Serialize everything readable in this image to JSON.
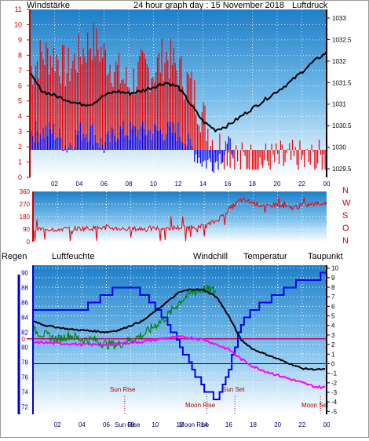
{
  "header": {
    "left_label": "Windstärke",
    "title": "24 hour graph day : 15 November 2018",
    "right_label": "Luftdruck"
  },
  "colors": {
    "red": "#ee0000",
    "blue": "#0000ee",
    "black": "#000000",
    "green": "#008000",
    "magenta": "#ff00ff",
    "darkred": "#aa0000",
    "sky_top": "#1e7fc8",
    "sky_bottom": "#ffffff"
  },
  "chart_data": [
    {
      "type": "line",
      "name": "wind_pressure",
      "x_ticks": [
        "02",
        "04",
        "06",
        "08",
        "10",
        "12",
        "14",
        "16",
        "18",
        "20",
        "22",
        "00"
      ],
      "left_axis": {
        "label": "Windstärke",
        "ticks": [
          "0",
          "1",
          "2",
          "3",
          "4",
          "5",
          "6",
          "7",
          "8",
          "9",
          "10",
          "11"
        ],
        "ylim": [
          0,
          11
        ]
      },
      "right_axis": {
        "label": "Luftdruck",
        "ticks": [
          "1029.5",
          "1030",
          "1030.5",
          "1031",
          "1031.5",
          "1032",
          "1032.5",
          "1033"
        ],
        "ylim": [
          1029.3,
          1033.2
        ]
      },
      "series": [
        {
          "name": "Windstärke",
          "color": "#ee0000",
          "x": [
            0,
            1,
            2,
            3,
            4,
            5,
            6,
            7,
            8,
            9,
            10,
            11,
            12,
            13,
            14,
            15,
            16,
            17,
            18,
            19,
            20,
            21,
            22,
            23,
            24
          ],
          "y": [
            7,
            8,
            8,
            7,
            8,
            9,
            8,
            7,
            6,
            7,
            7,
            8,
            7,
            6,
            4,
            2,
            2,
            1,
            1,
            1,
            1,
            1,
            1,
            1,
            1
          ]
        },
        {
          "name": "Windstärke min",
          "color": "#0000ee",
          "x": [
            0,
            1,
            2,
            3,
            4,
            5,
            6,
            7,
            8,
            9,
            10,
            11,
            12,
            13,
            14,
            15,
            16
          ],
          "y": [
            3,
            3,
            3,
            2,
            3,
            3,
            2,
            3,
            3,
            3,
            3,
            3,
            3,
            2,
            1,
            1,
            2
          ]
        },
        {
          "name": "Luftdruck",
          "color": "#000000",
          "x": [
            0,
            1,
            2,
            3,
            4,
            5,
            6,
            7,
            8,
            9,
            10,
            11,
            12,
            13,
            14,
            15,
            16,
            17,
            18,
            19,
            20,
            21,
            22,
            23,
            24
          ],
          "y": [
            1031.7,
            1031.3,
            1031.2,
            1031.1,
            1031.0,
            1031.0,
            1031.2,
            1031.3,
            1031.25,
            1031.3,
            1031.4,
            1031.5,
            1031.4,
            1031.0,
            1030.6,
            1030.4,
            1030.5,
            1030.7,
            1030.9,
            1031.1,
            1031.3,
            1031.5,
            1031.75,
            1032.0,
            1032.2
          ]
        }
      ]
    },
    {
      "type": "line",
      "name": "wind_direction",
      "x_ticks": [
        "02",
        "04",
        "06",
        "08",
        "10",
        "12",
        "14",
        "16",
        "18",
        "20",
        "22",
        "00"
      ],
      "left_axis": {
        "ticks": [
          "0",
          "90",
          "180",
          "270",
          "360"
        ],
        "ylim": [
          0,
          360
        ]
      },
      "right_labels": [
        "N",
        "W",
        "S",
        "O",
        "N"
      ],
      "series": [
        {
          "name": "Windrichtung",
          "color": "#ee0000",
          "x": [
            0,
            2,
            4,
            6,
            8,
            10,
            12,
            14,
            15,
            16,
            17,
            18,
            19,
            20,
            21,
            22,
            23,
            24
          ],
          "y": [
            90,
            90,
            95,
            100,
            90,
            95,
            100,
            110,
            150,
            230,
            300,
            280,
            250,
            270,
            240,
            260,
            270,
            280
          ]
        }
      ]
    },
    {
      "type": "line",
      "name": "humidity_temperature",
      "labels": [
        "Regen",
        "Luftfeuchte",
        "Windchill",
        "Temperatur",
        "Taupunkt"
      ],
      "x_ticks": [
        "02",
        "04",
        "06",
        "08",
        "10",
        "12",
        "14",
        "16",
        "18",
        "20",
        "22",
        "00"
      ],
      "left_axis": {
        "ticks": [
          "72",
          "74",
          "76",
          "78",
          "80",
          "82",
          "84",
          "86",
          "88",
          "90"
        ],
        "ylim": [
          71,
          91
        ]
      },
      "right_axis": {
        "ticks": [
          "-5",
          "-4",
          "-3",
          "-2",
          "-1",
          "0",
          "1",
          "2",
          "3",
          "4",
          "5",
          "6",
          "7",
          "8",
          "9",
          "10"
        ],
        "ylim": [
          -5,
          10
        ]
      },
      "left_marker": "0",
      "series": [
        {
          "name": "Luftfeuchte",
          "color": "#0000ee",
          "x": [
            0,
            2,
            4,
            5,
            6,
            7,
            8,
            9,
            10,
            11,
            12,
            13,
            14,
            15,
            16,
            17,
            18,
            19,
            20,
            21,
            22,
            23,
            24
          ],
          "y": [
            85,
            85,
            85,
            86,
            87,
            88,
            88,
            87,
            85,
            83,
            80,
            77,
            74,
            73,
            77,
            83,
            85,
            86,
            87,
            88,
            89,
            89,
            90
          ]
        },
        {
          "name": "Windchill",
          "color": "#008000",
          "x": [
            0,
            1,
            2,
            3,
            4,
            5,
            6,
            7,
            8,
            9,
            10,
            11,
            12,
            13,
            14,
            15
          ],
          "y": [
            3.5,
            3,
            2.5,
            3,
            2.5,
            2.5,
            2,
            2,
            2.5,
            3,
            4,
            5,
            6.5,
            7.5,
            7.8,
            7.6
          ]
        },
        {
          "name": "Temperatur",
          "color": "#000000",
          "x": [
            0,
            1,
            2,
            3,
            4,
            5,
            6,
            7,
            8,
            9,
            10,
            11,
            12,
            13,
            14,
            15,
            16,
            17,
            18,
            19,
            20,
            21,
            22,
            23,
            24
          ],
          "y": [
            4.5,
            4,
            3.8,
            3.6,
            3.5,
            3.4,
            3.3,
            3.5,
            4,
            4.5,
            5.5,
            6.5,
            7.5,
            7.8,
            7.7,
            7,
            5,
            2.5,
            1.5,
            1,
            0.5,
            0,
            -0.5,
            -0.6,
            -0.6
          ]
        },
        {
          "name": "Taupunkt",
          "color": "#ff00ff",
          "x": [
            0,
            1,
            2,
            3,
            4,
            5,
            6,
            7,
            8,
            9,
            10,
            11,
            12,
            13,
            14,
            15,
            16,
            17,
            18,
            19,
            20,
            21,
            22,
            23,
            24
          ],
          "y": [
            2.2,
            2.2,
            2.1,
            2.1,
            2.0,
            2.0,
            2.0,
            2.1,
            2.2,
            2.3,
            2.5,
            2.7,
            2.8,
            2.7,
            2.5,
            2.0,
            1.5,
            0.5,
            -0.3,
            -0.8,
            -1.2,
            -1.6,
            -2.0,
            -2.4,
            -2.5
          ]
        }
      ],
      "events": [
        {
          "label": "Sun Rise",
          "hour": 7.5
        },
        {
          "label": "Sun Set",
          "hour": 16.5
        },
        {
          "label": "Moon Rise",
          "hour": 14.2
        },
        {
          "label": "Moon Set",
          "hour": 23.5
        }
      ],
      "overlap_labels": [
        "Sun Rise",
        "Moon Rise"
      ]
    }
  ]
}
